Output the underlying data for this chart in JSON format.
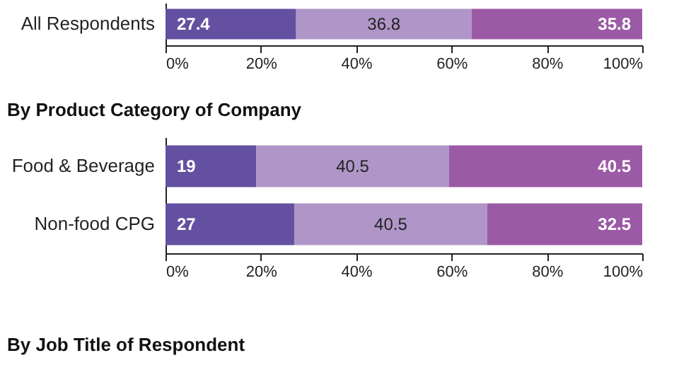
{
  "chart_data": [
    {
      "type": "bar",
      "orientation": "horizontal",
      "stacked": true,
      "data_labels": true,
      "legend": false,
      "grid": false,
      "categories": [
        "All Respondents"
      ],
      "series": [
        {
          "color": "#6450a0",
          "values": [
            27.4
          ]
        },
        {
          "color": "#b096c8",
          "values": [
            36.8
          ]
        },
        {
          "color": "#9b5aa5",
          "values": [
            35.8
          ]
        }
      ],
      "xlim": [
        0,
        100
      ],
      "xticks": [
        {
          "value": 0,
          "label": "0%"
        },
        {
          "value": 20,
          "label": "20%"
        },
        {
          "value": 40,
          "label": "40%"
        },
        {
          "value": 60,
          "label": "60%"
        },
        {
          "value": 80,
          "label": "80%"
        },
        {
          "value": 100,
          "label": "100%"
        }
      ]
    },
    {
      "type": "bar",
      "orientation": "horizontal",
      "stacked": true,
      "data_labels": true,
      "legend": false,
      "grid": false,
      "title": "By Product Category of Company",
      "categories": [
        "Food & Beverage",
        "Non-food CPG"
      ],
      "series": [
        {
          "color": "#6450a0",
          "values": [
            19,
            27
          ]
        },
        {
          "color": "#b096c8",
          "values": [
            40.5,
            40.5
          ]
        },
        {
          "color": "#9b5aa5",
          "values": [
            40.5,
            32.5
          ]
        }
      ],
      "xlim": [
        0,
        100
      ],
      "xticks": [
        {
          "value": 0,
          "label": "0%"
        },
        {
          "value": 20,
          "label": "20%"
        },
        {
          "value": 40,
          "label": "40%"
        },
        {
          "value": 60,
          "label": "60%"
        },
        {
          "value": 80,
          "label": "80%"
        },
        {
          "value": 100,
          "label": "100%"
        }
      ],
      "annotations": [
        "By Job Title of Respondent"
      ]
    }
  ]
}
